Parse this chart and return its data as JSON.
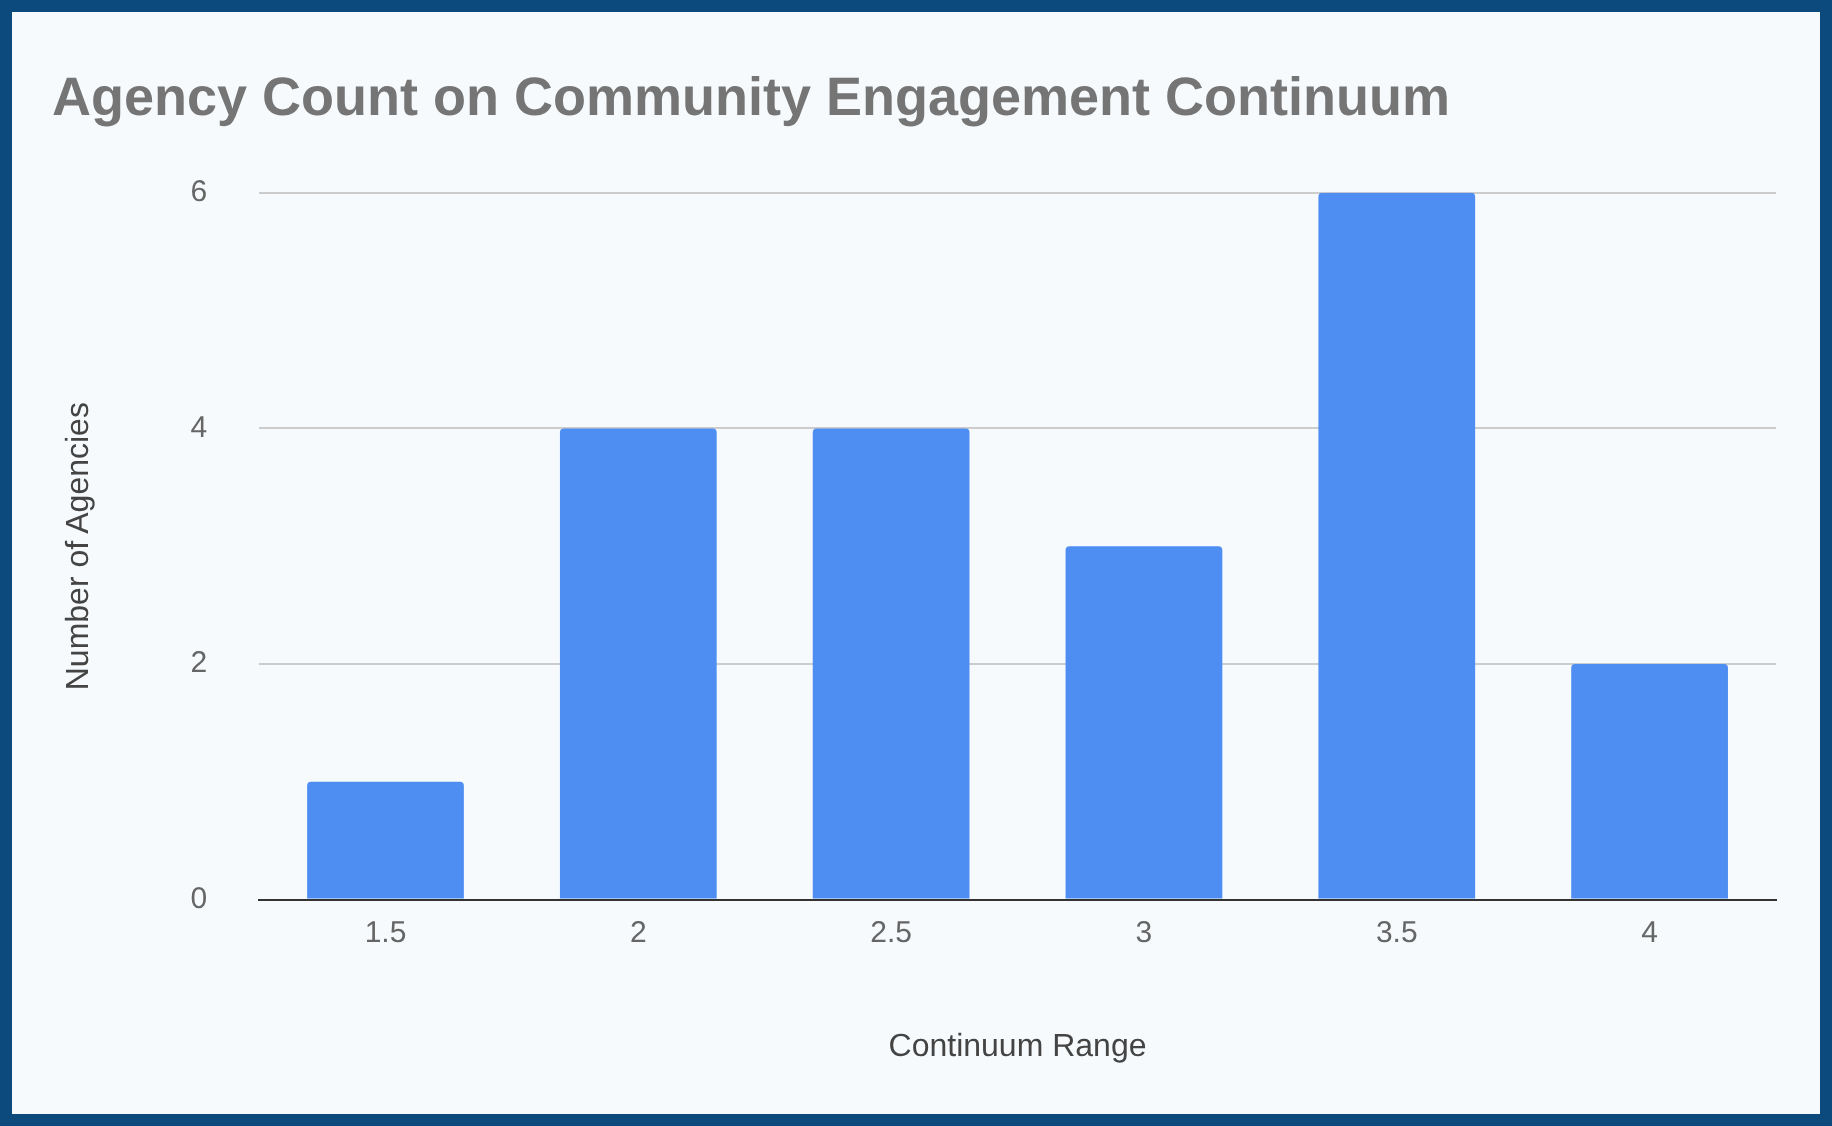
{
  "chart_data": {
    "type": "bar",
    "title": "Agency Count on Community Engagement Continuum",
    "xlabel": "Continuum Range",
    "ylabel": "Number of Agencies",
    "categories": [
      "1.5",
      "2",
      "2.5",
      "3",
      "3.5",
      "4"
    ],
    "values": [
      1,
      4,
      4,
      3,
      6,
      2
    ],
    "color": "#4e8ef2",
    "ylim": [
      0,
      6
    ],
    "yticks": [
      0,
      2,
      4,
      6
    ],
    "grid": "y"
  }
}
